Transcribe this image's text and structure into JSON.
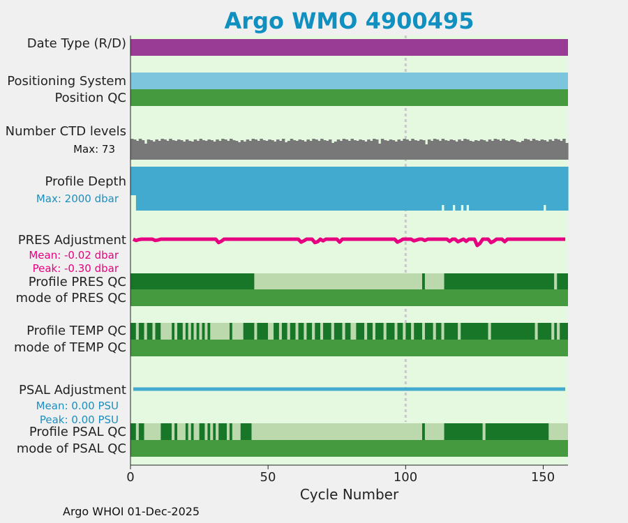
{
  "chart_data": {
    "type": "other",
    "title": "Argo WMO 4900495",
    "xlabel": "Cycle Number",
    "xlim": [
      0,
      159
    ],
    "x_ticks": [
      "0",
      "50",
      "100",
      "150"
    ],
    "x_tick_values": [
      0,
      50,
      100,
      150
    ],
    "vline_x": 100,
    "footer": "Argo WHOI 01-Dec-2025",
    "colors": {
      "background": "#e5f8e0",
      "date_type": "#983c96",
      "positioning": "#7dc4dd",
      "qc_good": "#45993f",
      "qc_dark": "#177628",
      "qc_light": "#bcd9ad",
      "ctd": "#787878",
      "depth": "#42aace",
      "pres_adj": "#e6007f",
      "psal_adj": "#42aace",
      "vline": "#c8c8c8"
    },
    "rows": {
      "date_type": {
        "label": "Date Type (R/D)"
      },
      "positioning": {
        "label": "Positioning System"
      },
      "position_qc": {
        "label": "Position QC"
      },
      "ctd": {
        "label": "Number CTD levels",
        "stat": "Max: 73"
      },
      "depth": {
        "label": "Profile Depth",
        "stat": "Max: 2000 dbar"
      },
      "pres_adj": {
        "label": "PRES Adjustment",
        "mean": "Mean: -0.02 dbar",
        "peak": "Peak: -0.30 dbar",
        "dips": [
          [
            2,
            0.06
          ],
          [
            3,
            0.02
          ],
          [
            9,
            0.06
          ],
          [
            10,
            0.04
          ],
          [
            32,
            0.16
          ],
          [
            33,
            0.1
          ],
          [
            62,
            0.14
          ],
          [
            63,
            0.08
          ],
          [
            67,
            0.16
          ],
          [
            68,
            0.12
          ],
          [
            70,
            0.08
          ],
          [
            76,
            0.14
          ],
          [
            97,
            0.14
          ],
          [
            98,
            0.08
          ],
          [
            103,
            0.08
          ],
          [
            104,
            0.04
          ],
          [
            107,
            0.06
          ],
          [
            116,
            0.1
          ],
          [
            119,
            0.12
          ],
          [
            120,
            0.06
          ],
          [
            122,
            0.1
          ],
          [
            126,
            0.3
          ],
          [
            127,
            0.2
          ],
          [
            131,
            0.16
          ],
          [
            132,
            0.1
          ],
          [
            136,
            0.12
          ]
        ]
      },
      "profile_pres_qc": {
        "label": "Profile PRES QC",
        "segments": [
          [
            0,
            45,
            "dark"
          ],
          [
            45,
            106,
            "light"
          ],
          [
            106,
            107,
            "dark"
          ],
          [
            107,
            114,
            "light"
          ],
          [
            114,
            154,
            "dark"
          ],
          [
            154,
            155,
            "light"
          ],
          [
            155,
            159,
            "dark"
          ]
        ]
      },
      "mode_pres_qc": {
        "label": "mode of PRES QC"
      },
      "profile_temp_qc": {
        "label": "Profile TEMP QC",
        "segments": [
          [
            0,
            2,
            "dark"
          ],
          [
            2,
            3,
            "light"
          ],
          [
            3,
            5,
            "dark"
          ],
          [
            5,
            6,
            "light"
          ],
          [
            6,
            8,
            "dark"
          ],
          [
            8,
            9,
            "light"
          ],
          [
            9,
            11,
            "dark"
          ],
          [
            11,
            15,
            "light"
          ],
          [
            15,
            16,
            "dark"
          ],
          [
            16,
            17,
            "light"
          ],
          [
            17,
            19,
            "dark"
          ],
          [
            19,
            20,
            "light"
          ],
          [
            20,
            21,
            "dark"
          ],
          [
            21,
            22,
            "light"
          ],
          [
            22,
            23,
            "dark"
          ],
          [
            23,
            24,
            "light"
          ],
          [
            24,
            25,
            "dark"
          ],
          [
            25,
            26,
            "light"
          ],
          [
            26,
            27,
            "dark"
          ],
          [
            27,
            28,
            "light"
          ],
          [
            28,
            29,
            "dark"
          ],
          [
            29,
            36,
            "light"
          ],
          [
            36,
            37,
            "dark"
          ],
          [
            37,
            41,
            "light"
          ],
          [
            41,
            45,
            "dark"
          ],
          [
            45,
            46,
            "light"
          ],
          [
            46,
            50,
            "dark"
          ],
          [
            50,
            52,
            "light"
          ],
          [
            52,
            54,
            "dark"
          ],
          [
            54,
            55,
            "light"
          ],
          [
            55,
            57,
            "dark"
          ],
          [
            57,
            58,
            "light"
          ],
          [
            58,
            60,
            "dark"
          ],
          [
            60,
            61,
            "light"
          ],
          [
            61,
            63,
            "dark"
          ],
          [
            63,
            64,
            "light"
          ],
          [
            64,
            66,
            "dark"
          ],
          [
            66,
            67,
            "light"
          ],
          [
            67,
            69,
            "dark"
          ],
          [
            69,
            70,
            "light"
          ],
          [
            70,
            73,
            "dark"
          ],
          [
            73,
            74,
            "light"
          ],
          [
            74,
            77,
            "dark"
          ],
          [
            77,
            78,
            "light"
          ],
          [
            78,
            80,
            "dark"
          ],
          [
            80,
            82,
            "light"
          ],
          [
            82,
            85,
            "dark"
          ],
          [
            85,
            86,
            "light"
          ],
          [
            86,
            88,
            "dark"
          ],
          [
            88,
            89,
            "light"
          ],
          [
            89,
            92,
            "dark"
          ],
          [
            92,
            93,
            "light"
          ],
          [
            93,
            96,
            "dark"
          ],
          [
            96,
            97,
            "light"
          ],
          [
            97,
            99,
            "dark"
          ],
          [
            99,
            100,
            "light"
          ],
          [
            100,
            102,
            "dark"
          ],
          [
            102,
            103,
            "light"
          ],
          [
            103,
            106,
            "dark"
          ],
          [
            106,
            107,
            "light"
          ],
          [
            107,
            110,
            "dark"
          ],
          [
            110,
            111,
            "light"
          ],
          [
            111,
            113,
            "dark"
          ],
          [
            113,
            114,
            "light"
          ],
          [
            114,
            119,
            "dark"
          ],
          [
            119,
            120,
            "light"
          ],
          [
            120,
            130,
            "dark"
          ],
          [
            130,
            131,
            "light"
          ],
          [
            131,
            147,
            "dark"
          ],
          [
            147,
            148,
            "light"
          ],
          [
            148,
            153,
            "dark"
          ],
          [
            153,
            154,
            "light"
          ],
          [
            154,
            155,
            "dark"
          ],
          [
            155,
            156,
            "light"
          ],
          [
            156,
            159,
            "dark"
          ]
        ]
      },
      "mode_temp_qc": {
        "label": "mode of TEMP QC"
      },
      "psal_adj": {
        "label": "PSAL Adjustment",
        "mean": "Mean: 0.00 PSU",
        "peak": "Peak: 0.00 PSU"
      },
      "profile_psal_qc": {
        "label": "Profile PSAL QC",
        "segments": [
          [
            0,
            2,
            "dark"
          ],
          [
            2,
            3,
            "light"
          ],
          [
            3,
            5,
            "dark"
          ],
          [
            5,
            11,
            "light"
          ],
          [
            11,
            15,
            "dark"
          ],
          [
            15,
            16,
            "light"
          ],
          [
            16,
            17,
            "dark"
          ],
          [
            17,
            20,
            "light"
          ],
          [
            20,
            21,
            "dark"
          ],
          [
            21,
            22,
            "light"
          ],
          [
            22,
            23,
            "dark"
          ],
          [
            23,
            25,
            "light"
          ],
          [
            25,
            27,
            "dark"
          ],
          [
            27,
            28,
            "light"
          ],
          [
            28,
            29,
            "dark"
          ],
          [
            29,
            30,
            "light"
          ],
          [
            30,
            31,
            "dark"
          ],
          [
            31,
            32,
            "light"
          ],
          [
            32,
            35,
            "dark"
          ],
          [
            35,
            36,
            "light"
          ],
          [
            36,
            37,
            "dark"
          ],
          [
            37,
            40,
            "light"
          ],
          [
            40,
            44,
            "dark"
          ],
          [
            44,
            106,
            "light"
          ],
          [
            106,
            107,
            "dark"
          ],
          [
            107,
            114,
            "light"
          ],
          [
            114,
            128,
            "dark"
          ],
          [
            128,
            129,
            "light"
          ],
          [
            129,
            152,
            "dark"
          ],
          [
            152,
            159,
            "light"
          ]
        ]
      },
      "mode_psal_qc": {
        "label": "mode of PSAL QC"
      }
    }
  }
}
